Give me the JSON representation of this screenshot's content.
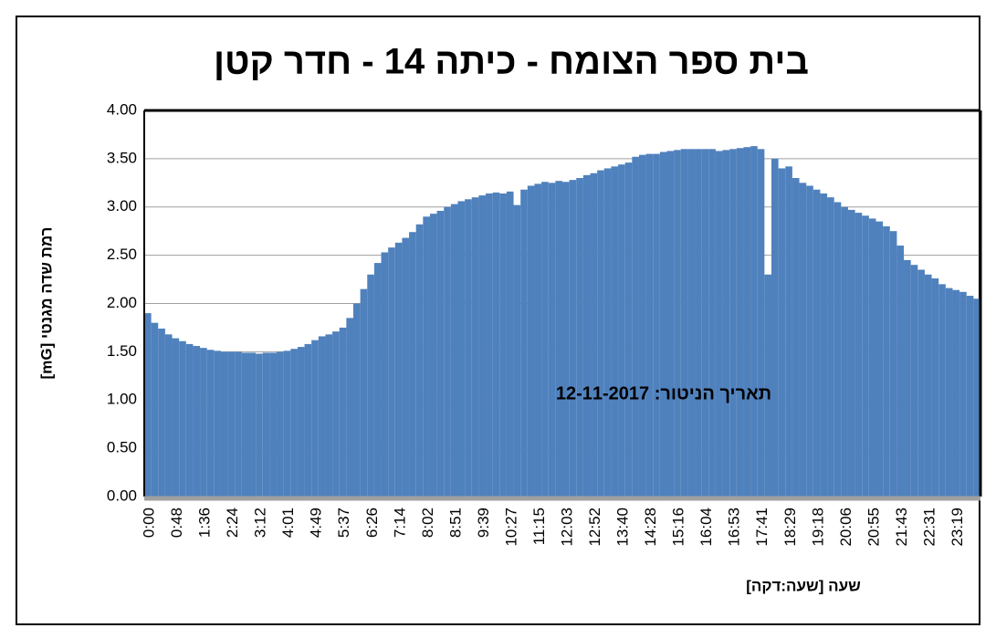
{
  "chart_data": {
    "type": "bar",
    "title": "בית ספר הצומח - כיתה 14 - חדר קטן",
    "y_label": "רמת שדה מגנטי  [mG]",
    "x_label": "שעה  [שעה:דקה]",
    "annotation": "תאריך הניטור: 12-11-2017",
    "color": "#4f81bd",
    "grid": true,
    "categories": [
      "0:00",
      null,
      null,
      null,
      "0:48",
      null,
      null,
      null,
      "1:36",
      null,
      null,
      null,
      "2:24",
      null,
      null,
      null,
      "3:12",
      null,
      null,
      null,
      "4:01",
      null,
      null,
      null,
      "4:49",
      null,
      null,
      null,
      "5:37",
      null,
      null,
      null,
      "6:26",
      null,
      null,
      null,
      "7:14",
      null,
      null,
      null,
      "8:02",
      null,
      null,
      null,
      "8:51",
      null,
      null,
      null,
      "9:39",
      null,
      null,
      null,
      "10:27",
      null,
      null,
      null,
      "11:15",
      null,
      null,
      null,
      "12:03",
      null,
      null,
      null,
      "12:52",
      null,
      null,
      null,
      "13:40",
      null,
      null,
      null,
      "14:28",
      null,
      null,
      null,
      "15:16",
      null,
      null,
      null,
      "16:04",
      null,
      null,
      null,
      "16:53",
      null,
      null,
      null,
      "17:41",
      null,
      null,
      null,
      "18:29",
      null,
      null,
      null,
      "19:18",
      null,
      null,
      null,
      "20:06",
      null,
      null,
      null,
      "20:55",
      null,
      null,
      null,
      "21:43",
      null,
      null,
      null,
      "22:31",
      null,
      null,
      null,
      "23:19",
      null,
      null,
      null
    ],
    "values": [
      1.9,
      1.8,
      1.74,
      1.68,
      1.64,
      1.61,
      1.58,
      1.56,
      1.54,
      1.52,
      1.51,
      1.5,
      1.5,
      1.5,
      1.49,
      1.49,
      1.48,
      1.49,
      1.49,
      1.5,
      1.51,
      1.53,
      1.55,
      1.58,
      1.62,
      1.66,
      1.68,
      1.71,
      1.75,
      1.85,
      2.0,
      2.15,
      2.3,
      2.42,
      2.53,
      2.58,
      2.63,
      2.68,
      2.74,
      2.82,
      2.9,
      2.93,
      2.96,
      3.0,
      3.03,
      3.06,
      3.08,
      3.1,
      3.12,
      3.14,
      3.15,
      3.14,
      3.16,
      3.02,
      3.18,
      3.22,
      3.24,
      3.26,
      3.25,
      3.27,
      3.26,
      3.28,
      3.3,
      3.33,
      3.35,
      3.38,
      3.4,
      3.42,
      3.44,
      3.46,
      3.52,
      3.54,
      3.55,
      3.55,
      3.57,
      3.58,
      3.59,
      3.6,
      3.6,
      3.6,
      3.6,
      3.6,
      3.58,
      3.59,
      3.6,
      3.61,
      3.62,
      3.63,
      3.6,
      2.3,
      3.5,
      3.4,
      3.42,
      3.3,
      3.25,
      3.22,
      3.18,
      3.14,
      3.1,
      3.05,
      3.0,
      2.97,
      2.94,
      2.91,
      2.88,
      2.85,
      2.8,
      2.75,
      2.6,
      2.45,
      2.4,
      2.35,
      2.3,
      2.26,
      2.2,
      2.16,
      2.14,
      2.12,
      2.08,
      2.05
    ],
    "ylim": [
      0,
      4
    ],
    "yticks": [
      {
        "value": 0,
        "label": "0.00"
      },
      {
        "value": 0.5,
        "label": "0.50"
      },
      {
        "value": 1,
        "label": "1.00"
      },
      {
        "value": 1.5,
        "label": "1.50"
      },
      {
        "value": 2,
        "label": "2.00"
      },
      {
        "value": 2.5,
        "label": "2.50"
      },
      {
        "value": 3,
        "label": "3.00"
      },
      {
        "value": 3.5,
        "label": "3.50"
      },
      {
        "value": 4,
        "label": "4.00"
      }
    ]
  }
}
